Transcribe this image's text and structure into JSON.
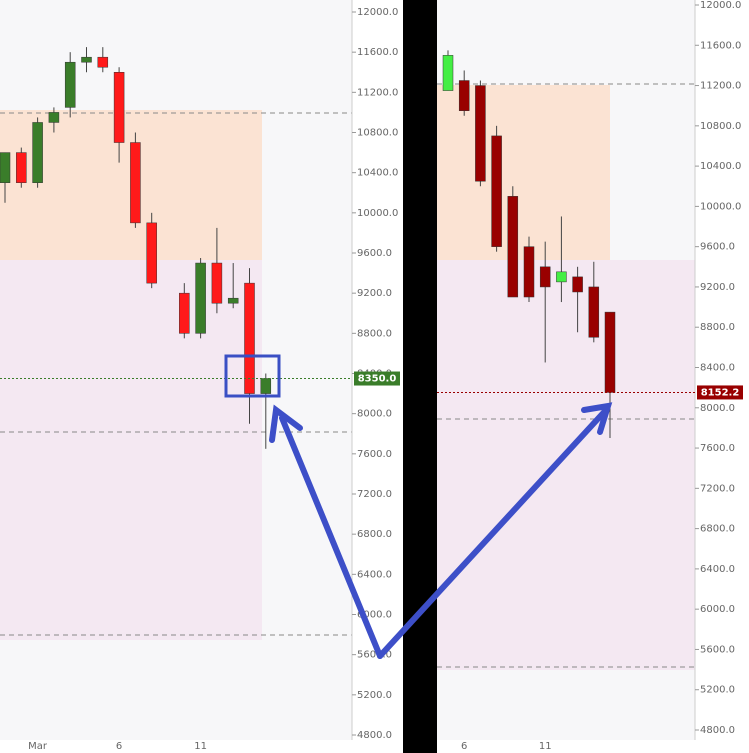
{
  "chart_data": [
    {
      "type": "candlestick",
      "categories": [
        null,
        null,
        "Mar",
        null,
        null,
        null,
        null,
        "6",
        null,
        null,
        null,
        null,
        "11",
        null,
        null,
        null,
        null
      ],
      "open": [
        10300,
        10600,
        10300,
        10900,
        11050,
        11500,
        11550,
        11400,
        10700,
        9900,
        null,
        9200,
        8800,
        9500,
        9100,
        9300,
        8200
      ],
      "high": [
        10600,
        10650,
        10950,
        11050,
        11600,
        11650,
        11650,
        11450,
        10800,
        10000,
        null,
        9300,
        9550,
        9850,
        9500,
        9450,
        8400
      ],
      "low": [
        10100,
        10250,
        10250,
        10800,
        10950,
        11400,
        11400,
        10500,
        9850,
        9250,
        null,
        8750,
        8750,
        9000,
        9050,
        7900,
        7650
      ],
      "close": [
        10600,
        10300,
        10900,
        11000,
        11500,
        11550,
        11450,
        10700,
        9900,
        9300,
        null,
        8800,
        9500,
        9100,
        9150,
        8200,
        8350
      ],
      "up_color": "#3a7d2a",
      "down_color": "#ff1a1a",
      "ylim": [
        4800,
        12000
      ],
      "yticks": [
        {
          "value": 4800,
          "label": "4800.0"
        },
        {
          "value": 5200,
          "label": "5200.0"
        },
        {
          "value": 5600,
          "label": "5600.0"
        },
        {
          "value": 6000,
          "label": "6000.0"
        },
        {
          "value": 6400,
          "label": "6400.0"
        },
        {
          "value": 6800,
          "label": "6800.0"
        },
        {
          "value": 7200,
          "label": "7200.0"
        },
        {
          "value": 7600,
          "label": "7600.0"
        },
        {
          "value": 8000,
          "label": "8000.0"
        },
        {
          "value": 8400,
          "label": "8400.0"
        },
        {
          "value": 8800,
          "label": "8800.0"
        },
        {
          "value": 9200,
          "label": "9200.0"
        },
        {
          "value": 9600,
          "label": "9600.0"
        },
        {
          "value": 10000,
          "label": "10000.0"
        },
        {
          "value": 10400,
          "label": "10400.0"
        },
        {
          "value": 10800,
          "label": "10800.0"
        },
        {
          "value": 11200,
          "label": "11200.0"
        },
        {
          "value": 11600,
          "label": "11600.0"
        },
        {
          "value": 12000,
          "label": "12000.0"
        }
      ],
      "last_price": {
        "value": 8350,
        "label": "8350.0"
      },
      "last_price_color": "#3a7d2a"
    },
    {
      "type": "candlestick",
      "categories": [
        null,
        "6",
        null,
        null,
        null,
        null,
        "11",
        null,
        null,
        null,
        null
      ],
      "open": [
        11150,
        11250,
        11200,
        10700,
        10100,
        9600,
        9400,
        9250,
        9300,
        9200,
        8950
      ],
      "high": [
        11550,
        11350,
        11250,
        10800,
        10200,
        9700,
        9650,
        9900,
        9400,
        9450,
        8950
      ],
      "low": [
        11150,
        10900,
        10200,
        9550,
        9100,
        9050,
        8450,
        9050,
        8750,
        8650,
        7700
      ],
      "close": [
        11500,
        10950,
        10250,
        9600,
        9100,
        9100,
        9200,
        9350,
        9150,
        8700,
        8152.2
      ],
      "up_color": "#44ee44",
      "down_color": "#990000",
      "ylim": [
        4800,
        12000
      ],
      "yticks": [
        {
          "value": 4800,
          "label": "4800.0"
        },
        {
          "value": 5200,
          "label": "5200.0"
        },
        {
          "value": 5600,
          "label": "5600.0"
        },
        {
          "value": 6000,
          "label": "6000.0"
        },
        {
          "value": 6400,
          "label": "6400.0"
        },
        {
          "value": 6800,
          "label": "6800.0"
        },
        {
          "value": 7200,
          "label": "7200.0"
        },
        {
          "value": 7600,
          "label": "7600.0"
        },
        {
          "value": 8000,
          "label": "8000.0"
        },
        {
          "value": 8400,
          "label": "8400.0"
        },
        {
          "value": 8800,
          "label": "8800.0"
        },
        {
          "value": 9200,
          "label": "9200.0"
        },
        {
          "value": 9600,
          "label": "9600.0"
        },
        {
          "value": 10000,
          "label": "10000.0"
        },
        {
          "value": 10400,
          "label": "10400.0"
        },
        {
          "value": 10800,
          "label": "10800.0"
        },
        {
          "value": 11200,
          "label": "11200.0"
        },
        {
          "value": 11600,
          "label": "11600.0"
        },
        {
          "value": 12000,
          "label": "12000.0"
        }
      ],
      "last_price": {
        "value": 8152.2,
        "label": "8152.2"
      },
      "last_price_color": "#990000"
    }
  ]
}
